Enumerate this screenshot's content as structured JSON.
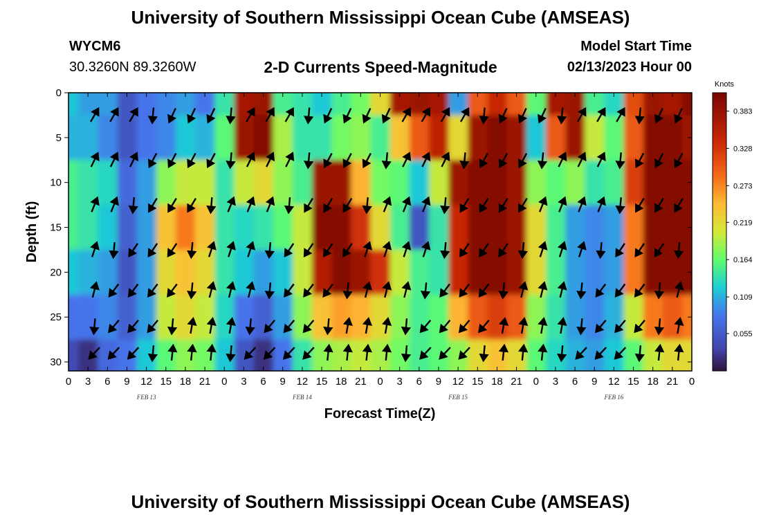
{
  "page": {
    "title": "University of Southern Mississippi Ocean Cube (AMSEAS)",
    "station_id": "WYCM6",
    "station_coords": "30.3260N  89.3260W",
    "chart_heading": "2-D Currents Speed-Magnitude",
    "model_start_label": "Model Start Time",
    "model_start_value": "02/13/2023 Hour 00",
    "footer_title": "University of Southern Mississippi Ocean Cube (AMSEAS)"
  },
  "chart_data": {
    "type": "heatmap",
    "title": "2-D Currents Speed-Magnitude",
    "xlabel": "Forecast Time(Z)",
    "ylabel": "Depth (ft)",
    "x_tick_labels": [
      "0",
      "3",
      "6",
      "9",
      "12",
      "15",
      "18",
      "21",
      "0",
      "3",
      "6",
      "9",
      "12",
      "15",
      "18",
      "21",
      "0",
      "3",
      "6",
      "9",
      "12",
      "15",
      "18",
      "21",
      "0",
      "3",
      "6",
      "9",
      "12",
      "15",
      "18",
      "21",
      "0"
    ],
    "date_labels": [
      {
        "text": "FEB 13",
        "hour": 12
      },
      {
        "text": "FEB 14",
        "hour": 36
      },
      {
        "text": "FEB 15",
        "hour": 60
      },
      {
        "text": "FEB 16",
        "hour": 84
      }
    ],
    "xlim": [
      0,
      96
    ],
    "y_ticks": [
      0,
      5,
      10,
      15,
      20,
      25,
      30
    ],
    "ylim": [
      0,
      31
    ],
    "y_inverted": true,
    "colorbar": {
      "title": "Knots",
      "ticks": [
        0.383,
        0.328,
        0.273,
        0.219,
        0.164,
        0.109,
        0.055
      ],
      "range": [
        0,
        0.41
      ],
      "colormap": "turbo"
    },
    "hours": [
      0,
      3,
      6,
      9,
      12,
      15,
      18,
      21,
      24,
      27,
      30,
      33,
      36,
      39,
      42,
      45,
      48,
      51,
      54,
      57,
      60,
      63,
      66,
      69,
      72,
      75,
      78,
      81,
      84,
      87,
      90,
      93,
      96
    ],
    "depths": [
      0,
      5,
      10,
      15,
      20,
      25,
      30
    ],
    "speed": [
      [
        0.12,
        0.1,
        0.1,
        0.05,
        0.08,
        0.09,
        0.1,
        0.08,
        0.14,
        0.37,
        0.38,
        0.15,
        0.14,
        0.12,
        0.15,
        0.17,
        0.22,
        0.37,
        0.38,
        0.37,
        0.1,
        0.3,
        0.34,
        0.3,
        0.16,
        0.37,
        0.38,
        0.15,
        0.13,
        0.31,
        0.38,
        0.37,
        0.4
      ],
      [
        0.11,
        0.11,
        0.09,
        0.05,
        0.08,
        0.09,
        0.12,
        0.11,
        0.16,
        0.38,
        0.4,
        0.19,
        0.14,
        0.14,
        0.17,
        0.18,
        0.15,
        0.24,
        0.3,
        0.35,
        0.22,
        0.38,
        0.4,
        0.38,
        0.12,
        0.3,
        0.38,
        0.2,
        0.16,
        0.3,
        0.4,
        0.4,
        0.38
      ],
      [
        0.15,
        0.14,
        0.13,
        0.07,
        0.1,
        0.18,
        0.2,
        0.2,
        0.14,
        0.2,
        0.22,
        0.18,
        0.15,
        0.38,
        0.38,
        0.25,
        0.17,
        0.16,
        0.12,
        0.2,
        0.38,
        0.4,
        0.4,
        0.38,
        0.18,
        0.16,
        0.18,
        0.14,
        0.15,
        0.32,
        0.4,
        0.4,
        0.4
      ],
      [
        0.15,
        0.14,
        0.12,
        0.06,
        0.1,
        0.24,
        0.28,
        0.24,
        0.14,
        0.13,
        0.14,
        0.16,
        0.2,
        0.4,
        0.4,
        0.33,
        0.22,
        0.15,
        0.05,
        0.14,
        0.34,
        0.4,
        0.4,
        0.38,
        0.22,
        0.15,
        0.1,
        0.09,
        0.1,
        0.28,
        0.4,
        0.4,
        0.4
      ],
      [
        0.12,
        0.11,
        0.1,
        0.05,
        0.1,
        0.22,
        0.24,
        0.22,
        0.14,
        0.12,
        0.1,
        0.12,
        0.2,
        0.36,
        0.4,
        0.38,
        0.33,
        0.2,
        0.15,
        0.14,
        0.34,
        0.4,
        0.4,
        0.38,
        0.22,
        0.15,
        0.1,
        0.09,
        0.1,
        0.28,
        0.4,
        0.4,
        0.4
      ],
      [
        0.08,
        0.08,
        0.09,
        0.06,
        0.1,
        0.2,
        0.22,
        0.2,
        0.13,
        0.08,
        0.06,
        0.1,
        0.18,
        0.24,
        0.26,
        0.25,
        0.22,
        0.18,
        0.15,
        0.16,
        0.25,
        0.3,
        0.32,
        0.3,
        0.18,
        0.14,
        0.1,
        0.09,
        0.11,
        0.2,
        0.28,
        0.3,
        0.28
      ],
      [
        0.04,
        0.02,
        0.07,
        0.08,
        0.12,
        0.16,
        0.18,
        0.17,
        0.12,
        0.05,
        0.02,
        0.08,
        0.14,
        0.18,
        0.19,
        0.2,
        0.19,
        0.17,
        0.15,
        0.16,
        0.18,
        0.22,
        0.24,
        0.22,
        0.16,
        0.13,
        0.11,
        0.1,
        0.12,
        0.16,
        0.2,
        0.22,
        0.22
      ]
    ],
    "vector_grid_note": "arrows drawn every 3 hours at selected depths"
  }
}
